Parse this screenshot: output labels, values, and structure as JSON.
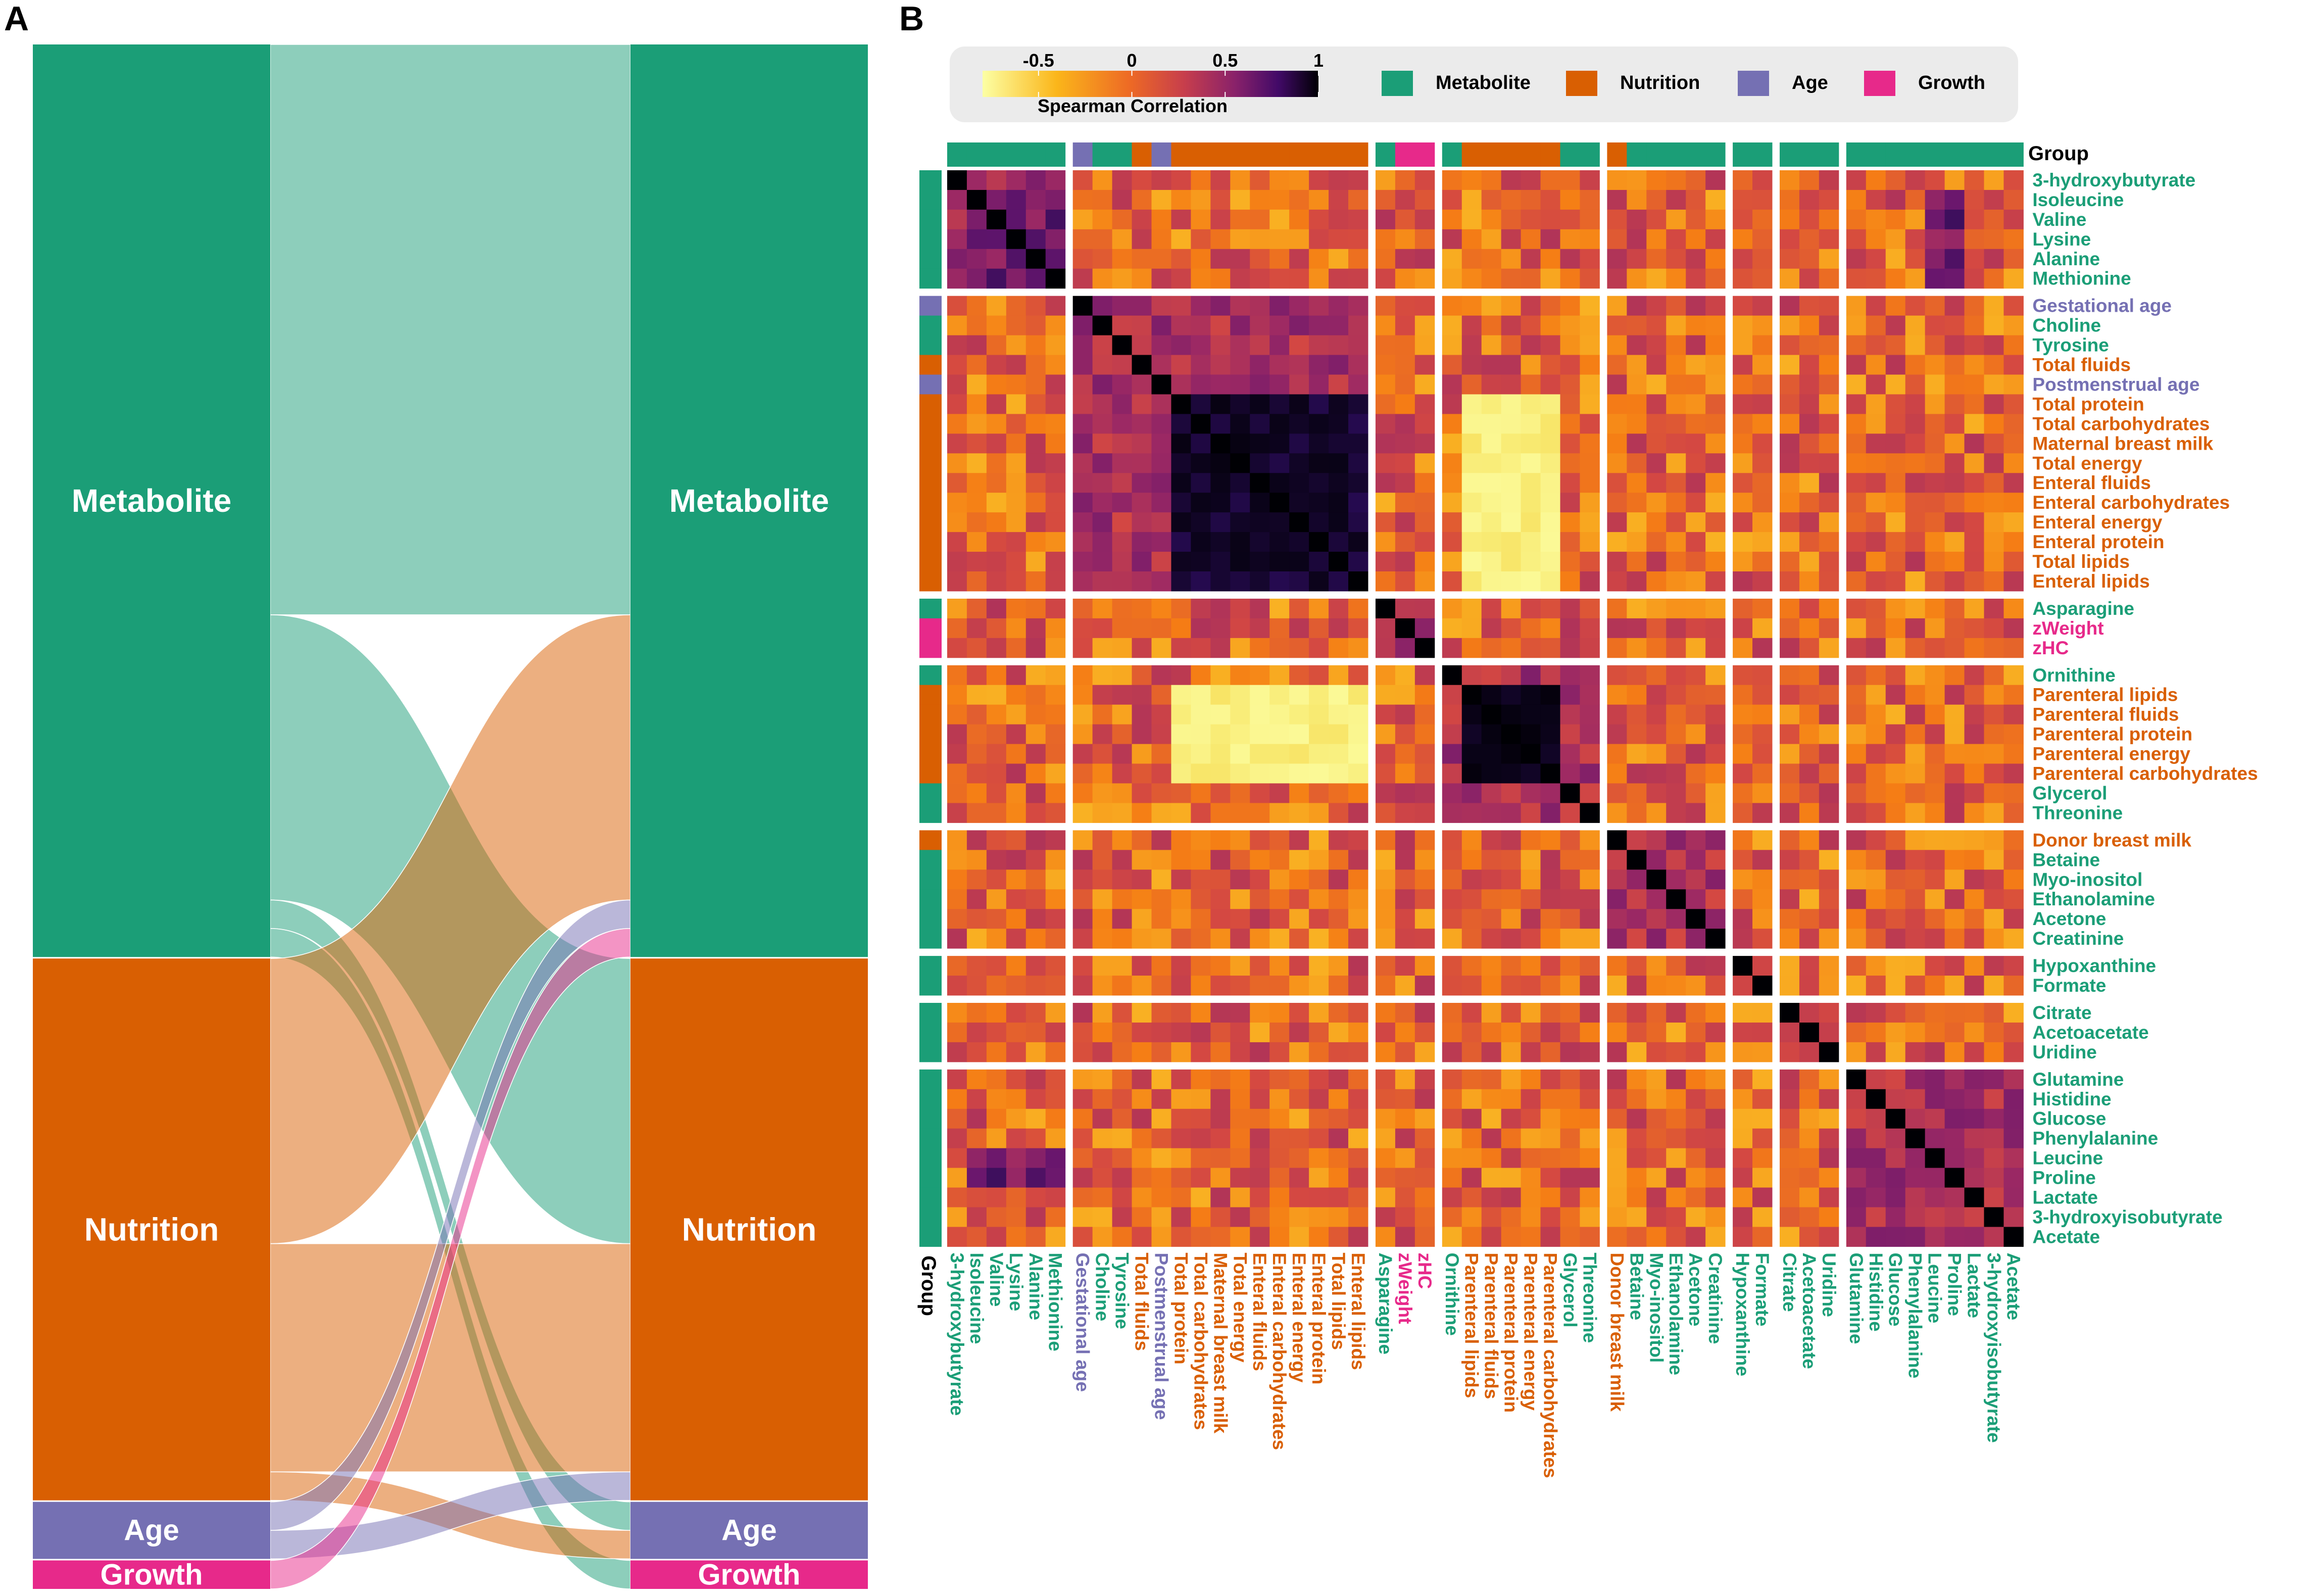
{
  "panels": {
    "a": "A",
    "b": "B"
  },
  "colors": {
    "Metabolite": "#1b9e77",
    "Nutrition": "#d95f02",
    "Age": "#7570b3",
    "Growth": "#e7298a",
    "legend_bg": "#ebebeb",
    "group_title": "#000000"
  },
  "chart_data": [
    {
      "type": "alluvial",
      "panel": "A",
      "strata": [
        {
          "name": "Metabolite",
          "size": 32
        },
        {
          "name": "Nutrition",
          "size": 19
        },
        {
          "name": "Age",
          "size": 2
        },
        {
          "name": "Growth",
          "size": 1
        }
      ],
      "labels": [
        "Metabolite",
        "Nutrition",
        "Age",
        "Growth"
      ],
      "flows": [
        {
          "from": "Metabolite",
          "to": "Metabolite",
          "value": 20
        },
        {
          "from": "Metabolite",
          "to": "Nutrition",
          "value": 10
        },
        {
          "from": "Metabolite",
          "to": "Age",
          "value": 1
        },
        {
          "from": "Metabolite",
          "to": "Growth",
          "value": 1
        },
        {
          "from": "Nutrition",
          "to": "Metabolite",
          "value": 10
        },
        {
          "from": "Nutrition",
          "to": "Nutrition",
          "value": 8
        },
        {
          "from": "Nutrition",
          "to": "Age",
          "value": 1
        },
        {
          "from": "Age",
          "to": "Metabolite",
          "value": 1
        },
        {
          "from": "Age",
          "to": "Nutrition",
          "value": 1
        },
        {
          "from": "Growth",
          "to": "Metabolite",
          "value": 1
        }
      ]
    },
    {
      "type": "heatmap",
      "panel": "B",
      "legend": {
        "title": "Spearman Correlation",
        "ticks": [
          "-0.5",
          "0",
          "0.5",
          "1"
        ],
        "tick_values": [
          -0.5,
          0,
          0.5,
          1
        ],
        "range": [
          -0.8,
          1
        ],
        "group_labels": [
          "Metabolite",
          "Nutrition",
          "Age",
          "Growth"
        ]
      },
      "group_title": "Group",
      "clusters": [
        6,
        15,
        3,
        8,
        6,
        2,
        3,
        9
      ],
      "variables": [
        {
          "name": "3-hydroxybutyrate",
          "group": "Metabolite"
        },
        {
          "name": "Isoleucine",
          "group": "Metabolite"
        },
        {
          "name": "Valine",
          "group": "Metabolite"
        },
        {
          "name": "Lysine",
          "group": "Metabolite"
        },
        {
          "name": "Alanine",
          "group": "Metabolite"
        },
        {
          "name": "Methionine",
          "group": "Metabolite"
        },
        {
          "name": "Gestational age",
          "group": "Age"
        },
        {
          "name": "Choline",
          "group": "Metabolite"
        },
        {
          "name": "Tyrosine",
          "group": "Metabolite"
        },
        {
          "name": "Total fluids",
          "group": "Nutrition"
        },
        {
          "name": "Postmenstrual age",
          "group": "Age"
        },
        {
          "name": "Total protein",
          "group": "Nutrition"
        },
        {
          "name": "Total carbohydrates",
          "group": "Nutrition"
        },
        {
          "name": "Maternal breast milk",
          "group": "Nutrition"
        },
        {
          "name": "Total energy",
          "group": "Nutrition"
        },
        {
          "name": "Enteral fluids",
          "group": "Nutrition"
        },
        {
          "name": "Enteral carbohydrates",
          "group": "Nutrition"
        },
        {
          "name": "Enteral energy",
          "group": "Nutrition"
        },
        {
          "name": "Enteral protein",
          "group": "Nutrition"
        },
        {
          "name": "Total lipids",
          "group": "Nutrition"
        },
        {
          "name": "Enteral lipids",
          "group": "Nutrition"
        },
        {
          "name": "Asparagine",
          "group": "Metabolite"
        },
        {
          "name": "zWeight",
          "group": "Growth"
        },
        {
          "name": "zHC",
          "group": "Growth"
        },
        {
          "name": "Ornithine",
          "group": "Metabolite"
        },
        {
          "name": "Parenteral lipids",
          "group": "Nutrition"
        },
        {
          "name": "Parenteral fluids",
          "group": "Nutrition"
        },
        {
          "name": "Parenteral protein",
          "group": "Nutrition"
        },
        {
          "name": "Parenteral energy",
          "group": "Nutrition"
        },
        {
          "name": "Parenteral carbohydrates",
          "group": "Nutrition"
        },
        {
          "name": "Glycerol",
          "group": "Metabolite"
        },
        {
          "name": "Threonine",
          "group": "Metabolite"
        },
        {
          "name": "Donor breast milk",
          "group": "Nutrition"
        },
        {
          "name": "Betaine",
          "group": "Metabolite"
        },
        {
          "name": "Myo-inositol",
          "group": "Metabolite"
        },
        {
          "name": "Ethanolamine",
          "group": "Metabolite"
        },
        {
          "name": "Acetone",
          "group": "Metabolite"
        },
        {
          "name": "Creatinine",
          "group": "Metabolite"
        },
        {
          "name": "Hypoxanthine",
          "group": "Metabolite"
        },
        {
          "name": "Formate",
          "group": "Metabolite"
        },
        {
          "name": "Citrate",
          "group": "Metabolite"
        },
        {
          "name": "Acetoacetate",
          "group": "Metabolite"
        },
        {
          "name": "Uridine",
          "group": "Metabolite"
        },
        {
          "name": "Glutamine",
          "group": "Metabolite"
        },
        {
          "name": "Histidine",
          "group": "Metabolite"
        },
        {
          "name": "Glucose",
          "group": "Metabolite"
        },
        {
          "name": "Phenylalanine",
          "group": "Metabolite"
        },
        {
          "name": "Leucine",
          "group": "Metabolite"
        },
        {
          "name": "Proline",
          "group": "Metabolite"
        },
        {
          "name": "Lactate",
          "group": "Metabolite"
        },
        {
          "name": "3-hydroxyisobutyrate",
          "group": "Metabolite"
        },
        {
          "name": "Acetate",
          "group": "Metabolite"
        }
      ]
    }
  ]
}
